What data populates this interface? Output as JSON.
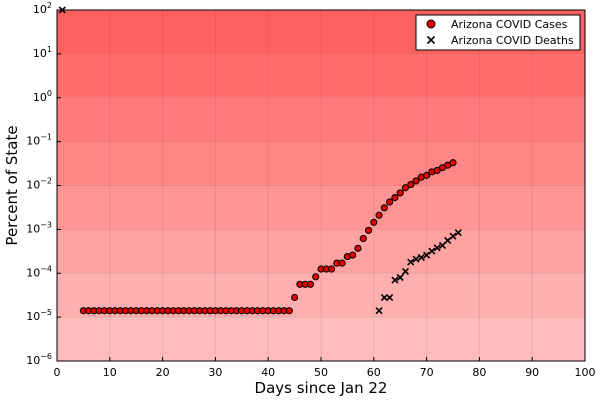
{
  "chart_data": {
    "type": "scatter",
    "title": "",
    "xlabel": "Days since Jan 22",
    "ylabel": "Percent of State",
    "yscale": "log",
    "xlim": [
      0,
      100
    ],
    "ylim_exponents": [
      -6,
      2
    ],
    "xticks": [
      "0",
      "10",
      "20",
      "30",
      "40",
      "50",
      "60",
      "70",
      "80",
      "90",
      "100"
    ],
    "yticks": [
      {
        "base": "10",
        "exp": "−6"
      },
      {
        "base": "10",
        "exp": "−5"
      },
      {
        "base": "10",
        "exp": "−4"
      },
      {
        "base": "10",
        "exp": "−3"
      },
      {
        "base": "10",
        "exp": "−2"
      },
      {
        "base": "10",
        "exp": "−1"
      },
      {
        "base": "10",
        "exp": "0"
      },
      {
        "base": "10",
        "exp": "1"
      },
      {
        "base": "10",
        "exp": "2"
      }
    ],
    "grid": true,
    "legend_position": "top-right",
    "background": "red gradient by decade, darker at higher percentages",
    "series": [
      {
        "name": "Arizona COVID Cases",
        "marker": "circle",
        "color": "#e00000",
        "x": [
          5,
          6,
          7,
          8,
          9,
          10,
          11,
          12,
          13,
          14,
          15,
          16,
          17,
          18,
          19,
          20,
          21,
          22,
          23,
          24,
          25,
          26,
          27,
          28,
          29,
          30,
          31,
          32,
          33,
          34,
          35,
          36,
          37,
          38,
          39,
          40,
          41,
          42,
          43,
          44,
          45,
          46,
          47,
          48,
          49,
          50,
          51,
          52,
          53,
          54,
          55,
          56,
          57,
          58,
          59,
          60,
          61,
          62,
          63,
          64,
          65,
          66,
          67,
          68,
          69,
          70,
          71,
          72,
          73,
          74,
          75
        ],
        "y": [
          1.4e-05,
          1.4e-05,
          1.4e-05,
          1.4e-05,
          1.4e-05,
          1.4e-05,
          1.4e-05,
          1.4e-05,
          1.4e-05,
          1.4e-05,
          1.4e-05,
          1.4e-05,
          1.4e-05,
          1.4e-05,
          1.4e-05,
          1.4e-05,
          1.4e-05,
          1.4e-05,
          1.4e-05,
          1.4e-05,
          1.4e-05,
          1.4e-05,
          1.4e-05,
          1.4e-05,
          1.4e-05,
          1.4e-05,
          1.4e-05,
          1.4e-05,
          1.4e-05,
          1.4e-05,
          1.4e-05,
          1.4e-05,
          1.4e-05,
          1.4e-05,
          1.4e-05,
          1.4e-05,
          1.4e-05,
          1.4e-05,
          1.4e-05,
          1.4e-05,
          2.8e-05,
          5.6e-05,
          5.6e-05,
          5.6e-05,
          8.3e-05,
          0.000125,
          0.000125,
          0.000125,
          0.00017,
          0.00017,
          0.00024,
          0.00026,
          0.00037,
          0.00062,
          0.00095,
          0.00145,
          0.0021,
          0.0031,
          0.0042,
          0.0053,
          0.0068,
          0.0089,
          0.0105,
          0.0127,
          0.0155,
          0.017,
          0.0205,
          0.022,
          0.0255,
          0.029,
          0.033
        ]
      },
      {
        "name": "Arizona COVID Deaths",
        "marker": "x",
        "color": "#000000",
        "x": [
          1,
          61,
          62,
          63,
          64,
          65,
          66,
          67,
          68,
          69,
          70,
          71,
          72,
          73,
          74,
          75,
          76
        ],
        "y": [
          100,
          1.4e-05,
          2.8e-05,
          2.8e-05,
          7e-05,
          8e-05,
          0.00011,
          0.00018,
          0.00021,
          0.00023,
          0.00026,
          0.00032,
          0.00038,
          0.00043,
          0.00056,
          0.0007,
          0.00084
        ]
      }
    ]
  }
}
